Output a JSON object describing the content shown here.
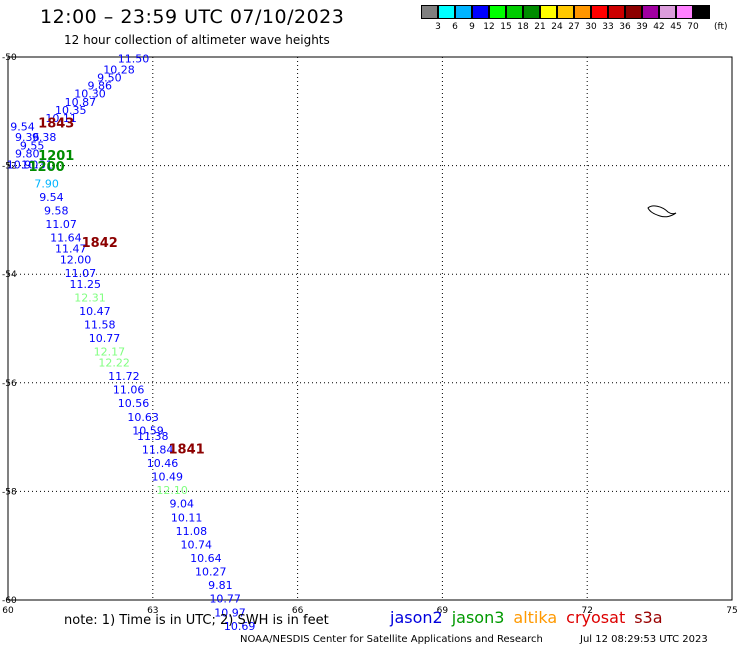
{
  "header": {
    "title": "12:00 – 23:59 UTC 07/10/2023",
    "subtitle": "12 hour collection of altimeter wave heights"
  },
  "colorbar": {
    "colors": [
      "#808080",
      "#00ffff",
      "#00b4ff",
      "#0000ff",
      "#00ff00",
      "#00cc00",
      "#008c00",
      "#ffff00",
      "#ffc800",
      "#ff9600",
      "#ff0000",
      "#cc0000",
      "#8c0000",
      "#a000a0",
      "#dc9cdc",
      "#ff80ff",
      "#000000"
    ],
    "labels": [
      "3",
      "6",
      "9",
      "12",
      "15",
      "18",
      "21",
      "24",
      "27",
      "30",
      "33",
      "36",
      "39",
      "42",
      "45",
      "70"
    ],
    "unit": "(ft)"
  },
  "map": {
    "lon_ticks": [
      "60",
      "63",
      "66",
      "69",
      "72",
      "75"
    ],
    "lat_ticks": [
      "-50",
      "-52",
      "-54",
      "-56",
      "-58",
      "-60"
    ],
    "lon_range": [
      60,
      75
    ],
    "lat_range": [
      -50,
      -60
    ],
    "grid": true
  },
  "track_labels": [
    {
      "text": "1843",
      "lon": 61.0,
      "lat": -51.3,
      "color": "#8c0000"
    },
    {
      "text": "1201",
      "lon": 61.0,
      "lat": -51.9,
      "color": "#008c00"
    },
    {
      "text": "1200",
      "lon": 60.8,
      "lat": -52.1,
      "color": "#008c00"
    },
    {
      "text": "1842",
      "lon": 61.9,
      "lat": -53.5,
      "color": "#8c0000"
    },
    {
      "text": "1841",
      "lon": 63.7,
      "lat": -57.3,
      "color": "#8c0000"
    }
  ],
  "wave_heights": [
    {
      "value": "11.50",
      "lon": 62.6,
      "lat": -50.1,
      "color": "#0000ff"
    },
    {
      "value": "10.28",
      "lon": 62.3,
      "lat": -50.3,
      "color": "#0000ff"
    },
    {
      "value": "9.50",
      "lon": 62.1,
      "lat": -50.45,
      "color": "#0000ff"
    },
    {
      "value": "9.86",
      "lon": 61.9,
      "lat": -50.6,
      "color": "#0000ff"
    },
    {
      "value": "10.30",
      "lon": 61.7,
      "lat": -50.75,
      "color": "#0000ff"
    },
    {
      "value": "10.87",
      "lon": 61.5,
      "lat": -50.9,
      "color": "#0000ff"
    },
    {
      "value": "10.35",
      "lon": 61.3,
      "lat": -51.05,
      "color": "#0000ff"
    },
    {
      "value": "10.11",
      "lon": 61.1,
      "lat": -51.2,
      "color": "#0000ff"
    },
    {
      "value": "9.54",
      "lon": 60.3,
      "lat": -51.35,
      "color": "#0000ff"
    },
    {
      "value": "9.36",
      "lon": 60.4,
      "lat": -51.55,
      "color": "#0000ff"
    },
    {
      "value": "9.38",
      "lon": 60.75,
      "lat": -51.55,
      "color": "#0000ff"
    },
    {
      "value": "9.55",
      "lon": 60.5,
      "lat": -51.7,
      "color": "#0000ff"
    },
    {
      "value": "9.80",
      "lon": 60.4,
      "lat": -51.85,
      "color": "#0000ff"
    },
    {
      "value": "10.90",
      "lon": 60.3,
      "lat": -52.05,
      "color": "#0000ff"
    },
    {
      "value": "10.31",
      "lon": 60.6,
      "lat": -52.05,
      "color": "#0000ff"
    },
    {
      "value": "7.90",
      "lon": 60.8,
      "lat": -52.4,
      "color": "#00b4ff"
    },
    {
      "value": "9.54",
      "lon": 60.9,
      "lat": -52.65,
      "color": "#0000ff"
    },
    {
      "value": "9.58",
      "lon": 61.0,
      "lat": -52.9,
      "color": "#0000ff"
    },
    {
      "value": "11.07",
      "lon": 61.1,
      "lat": -53.15,
      "color": "#0000ff"
    },
    {
      "value": "11.64",
      "lon": 61.2,
      "lat": -53.4,
      "color": "#0000ff"
    },
    {
      "value": "11.47",
      "lon": 61.3,
      "lat": -53.6,
      "color": "#0000ff"
    },
    {
      "value": "12.00",
      "lon": 61.4,
      "lat": -53.8,
      "color": "#0000ff"
    },
    {
      "value": "11.07",
      "lon": 61.5,
      "lat": -54.05,
      "color": "#0000ff"
    },
    {
      "value": "11.25",
      "lon": 61.6,
      "lat": -54.25,
      "color": "#0000ff"
    },
    {
      "value": "12.31",
      "lon": 61.7,
      "lat": -54.5,
      "color": "#80ff80"
    },
    {
      "value": "10.47",
      "lon": 61.8,
      "lat": -54.75,
      "color": "#0000ff"
    },
    {
      "value": "11.58",
      "lon": 61.9,
      "lat": -55.0,
      "color": "#0000ff"
    },
    {
      "value": "10.77",
      "lon": 62.0,
      "lat": -55.25,
      "color": "#0000ff"
    },
    {
      "value": "12.17",
      "lon": 62.1,
      "lat": -55.5,
      "color": "#80ff80"
    },
    {
      "value": "12.22",
      "lon": 62.2,
      "lat": -55.7,
      "color": "#80ff80"
    },
    {
      "value": "11.72",
      "lon": 62.4,
      "lat": -55.95,
      "color": "#0000ff"
    },
    {
      "value": "11.06",
      "lon": 62.5,
      "lat": -56.2,
      "color": "#0000ff"
    },
    {
      "value": "10.56",
      "lon": 62.6,
      "lat": -56.45,
      "color": "#0000ff"
    },
    {
      "value": "10.63",
      "lon": 62.8,
      "lat": -56.7,
      "color": "#0000ff"
    },
    {
      "value": "10.59",
      "lon": 62.9,
      "lat": -56.95,
      "color": "#0000ff"
    },
    {
      "value": "11.38",
      "lon": 63.0,
      "lat": -57.05,
      "color": "#0000ff"
    },
    {
      "value": "11.84",
      "lon": 63.1,
      "lat": -57.3,
      "color": "#0000ff"
    },
    {
      "value": "10.46",
      "lon": 63.2,
      "lat": -57.55,
      "color": "#0000ff"
    },
    {
      "value": "10.49",
      "lon": 63.3,
      "lat": -57.8,
      "color": "#0000ff"
    },
    {
      "value": "12.10",
      "lon": 63.4,
      "lat": -58.05,
      "color": "#80ff80"
    },
    {
      "value": "9.04",
      "lon": 63.6,
      "lat": -58.3,
      "color": "#0000ff"
    },
    {
      "value": "10.11",
      "lon": 63.7,
      "lat": -58.55,
      "color": "#0000ff"
    },
    {
      "value": "11.08",
      "lon": 63.8,
      "lat": -58.8,
      "color": "#0000ff"
    },
    {
      "value": "10.74",
      "lon": 63.9,
      "lat": -59.05,
      "color": "#0000ff"
    },
    {
      "value": "10.64",
      "lon": 64.1,
      "lat": -59.3,
      "color": "#0000ff"
    },
    {
      "value": "10.27",
      "lon": 64.2,
      "lat": -59.55,
      "color": "#0000ff"
    },
    {
      "value": "9.81",
      "lon": 64.4,
      "lat": -59.8,
      "color": "#0000ff"
    },
    {
      "value": "10.77",
      "lon": 64.5,
      "lat": -60.05,
      "color": "#0000ff"
    },
    {
      "value": "10.97",
      "lon": 64.6,
      "lat": -60.3,
      "color": "#0000ff"
    },
    {
      "value": "10.69",
      "lon": 64.8,
      "lat": -60.55,
      "color": "#0000ff"
    }
  ],
  "footer": {
    "note": "note: 1) Time is in UTC; 2) SWH is in feet",
    "satellites": [
      {
        "name": "jason2",
        "color": "#0000dd"
      },
      {
        "name": "jason3",
        "color": "#009900"
      },
      {
        "name": "altika",
        "color": "#ff9900"
      },
      {
        "name": "cryosat",
        "color": "#dd0000"
      },
      {
        "name": "s3a",
        "color": "#990000"
      }
    ],
    "credit": "NOAA/NESDIS Center for Satellite Applications and Research",
    "date": "Jul 12 08:29:53 UTC 2023"
  }
}
